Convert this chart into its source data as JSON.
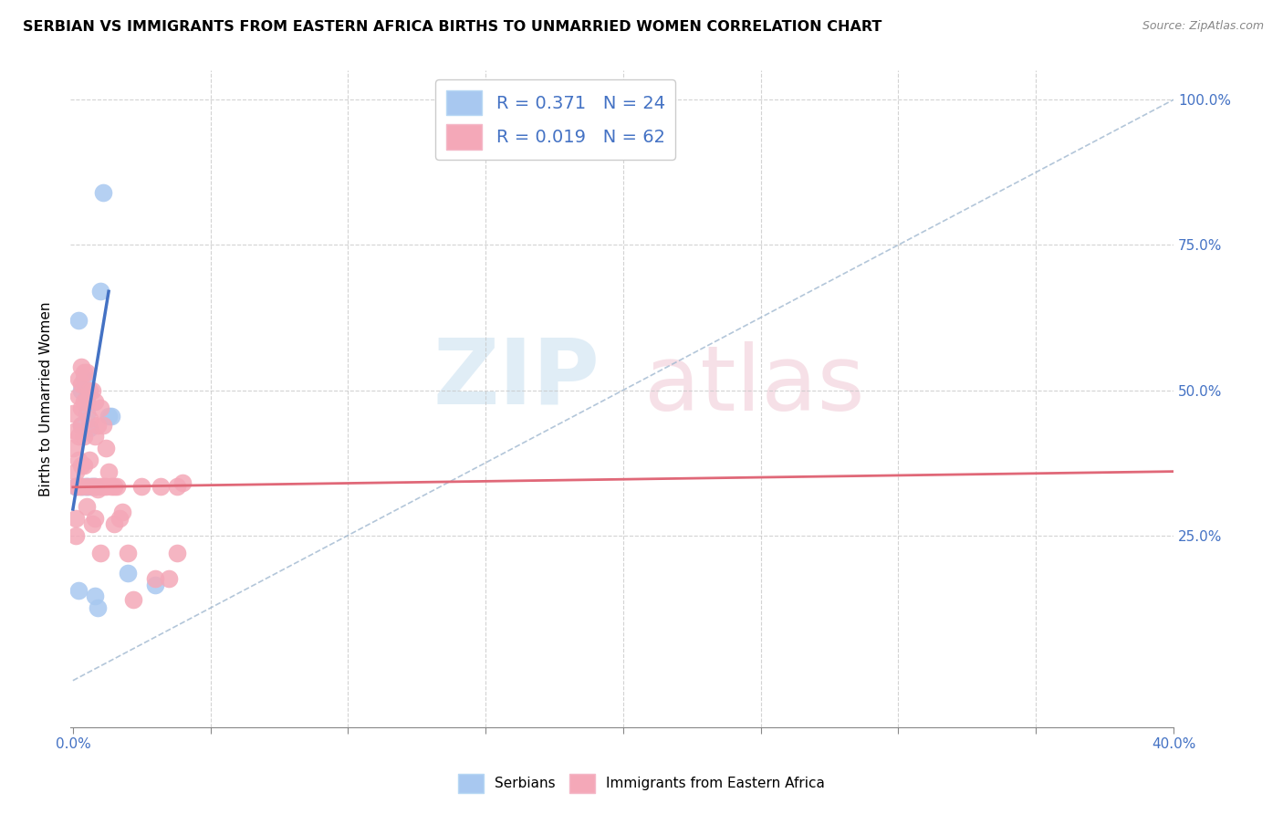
{
  "title": "SERBIAN VS IMMIGRANTS FROM EASTERN AFRICA BIRTHS TO UNMARRIED WOMEN CORRELATION CHART",
  "source": "Source: ZipAtlas.com",
  "ylabel": "Births to Unmarried Women",
  "blue_color": "#a8c8f0",
  "pink_color": "#f4a8b8",
  "blue_line_color": "#4472c4",
  "pink_line_color": "#e06878",
  "dashed_line_color": "#a0b8d0",
  "bg_color": "#ffffff",
  "grid_color": "#c8c8c8",
  "serbians_x": [
    0.001,
    0.001,
    0.002,
    0.002,
    0.003,
    0.003,
    0.003,
    0.004,
    0.004,
    0.005,
    0.005,
    0.005,
    0.006,
    0.006,
    0.007,
    0.008,
    0.008,
    0.009,
    0.01,
    0.011,
    0.013,
    0.014,
    0.02,
    0.03
  ],
  "serbians_y": [
    0.335,
    0.335,
    0.62,
    0.155,
    0.5,
    0.44,
    0.335,
    0.52,
    0.335,
    0.49,
    0.46,
    0.335,
    0.435,
    0.335,
    0.335,
    0.335,
    0.145,
    0.125,
    0.67,
    0.84,
    0.455,
    0.455,
    0.185,
    0.165
  ],
  "eastern_africa_x": [
    0.0,
    0.0,
    0.001,
    0.001,
    0.001,
    0.001,
    0.001,
    0.002,
    0.002,
    0.002,
    0.002,
    0.002,
    0.003,
    0.003,
    0.003,
    0.003,
    0.003,
    0.003,
    0.004,
    0.004,
    0.004,
    0.004,
    0.005,
    0.005,
    0.005,
    0.005,
    0.006,
    0.006,
    0.006,
    0.007,
    0.007,
    0.007,
    0.008,
    0.008,
    0.008,
    0.008,
    0.009,
    0.009,
    0.01,
    0.01,
    0.01,
    0.011,
    0.011,
    0.012,
    0.012,
    0.013,
    0.014,
    0.015,
    0.015,
    0.016,
    0.017,
    0.018,
    0.02,
    0.022,
    0.025,
    0.03,
    0.032,
    0.035,
    0.038,
    0.038,
    0.04
  ],
  "eastern_africa_y": [
    0.4,
    0.46,
    0.43,
    0.36,
    0.335,
    0.28,
    0.25,
    0.52,
    0.49,
    0.42,
    0.38,
    0.335,
    0.54,
    0.51,
    0.47,
    0.44,
    0.37,
    0.335,
    0.53,
    0.48,
    0.42,
    0.37,
    0.53,
    0.48,
    0.335,
    0.3,
    0.5,
    0.45,
    0.38,
    0.5,
    0.335,
    0.27,
    0.48,
    0.42,
    0.335,
    0.28,
    0.44,
    0.33,
    0.47,
    0.335,
    0.22,
    0.44,
    0.335,
    0.4,
    0.335,
    0.36,
    0.335,
    0.335,
    0.27,
    0.335,
    0.28,
    0.29,
    0.22,
    0.14,
    0.335,
    0.175,
    0.335,
    0.175,
    0.335,
    0.22,
    0.34
  ],
  "xlim": [
    -0.001,
    0.4
  ],
  "ylim": [
    -0.08,
    1.05
  ],
  "x_tick_positions": [
    0.0,
    0.05,
    0.1,
    0.15,
    0.2,
    0.25,
    0.3,
    0.35,
    0.4
  ],
  "y_tick_positions": [
    0.25,
    0.5,
    0.75,
    1.0
  ],
  "y_tick_labels": [
    "25.0%",
    "50.0%",
    "75.0%",
    "100.0%"
  ]
}
